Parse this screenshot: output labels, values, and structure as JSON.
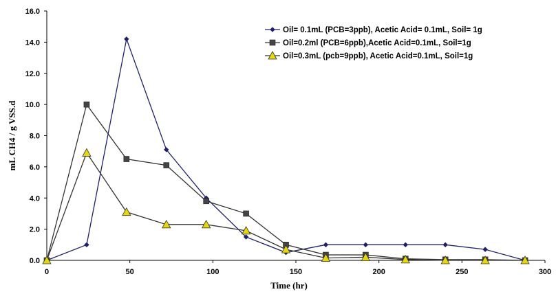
{
  "chart_data": {
    "type": "line",
    "xlabel": "Time (hr)",
    "ylabel": "mL CH4 / g VSS.d",
    "xlim": [
      0,
      300
    ],
    "ylim": [
      0,
      16
    ],
    "x_ticks": [
      "0",
      "50",
      "100",
      "150",
      "200",
      "250",
      "300"
    ],
    "y_ticks": [
      "0.0",
      "2.0",
      "4.0",
      "6.0",
      "8.0",
      "10.0",
      "12.0",
      "14.0",
      "16.0"
    ],
    "grid": false,
    "legend_position": "top-right",
    "series": [
      {
        "name": "Oil= 0.1mL (PCB=3ppb),  Acetic Acid= 0.1mL, Soil= 1g",
        "marker": "diamond",
        "color": "#1f1f6e",
        "marker_color": "#1f1f6e",
        "x": [
          0,
          24,
          48,
          72,
          96,
          120,
          144,
          168,
          192,
          216,
          240,
          264,
          288
        ],
        "y": [
          0,
          1.0,
          14.2,
          7.1,
          4.0,
          1.5,
          0.5,
          1.0,
          1.0,
          1.0,
          1.0,
          0.7,
          0
        ]
      },
      {
        "name": "Oil=0.2ml (PCB=6ppb),Acetic Acid=0.1mL, Soil=1g",
        "marker": "square",
        "color": "#333333",
        "marker_color": "#444444",
        "x": [
          0,
          24,
          48,
          72,
          96,
          120,
          144,
          168,
          192,
          216,
          240,
          264,
          288
        ],
        "y": [
          0,
          10.0,
          6.5,
          6.1,
          3.8,
          3.0,
          1.0,
          0.35,
          0.35,
          0.1,
          0.05,
          0.05,
          0
        ]
      },
      {
        "name": "Oil=0.3mL (pcb=9ppb), Acetic Acid=0.1mL, Soil=1g",
        "marker": "triangle",
        "color": "#333333",
        "marker_color": "#e6d800",
        "x": [
          0,
          24,
          48,
          72,
          96,
          120,
          144,
          168,
          192,
          216,
          240,
          264,
          288
        ],
        "y": [
          0,
          6.9,
          3.1,
          2.3,
          2.3,
          1.9,
          0.7,
          0.15,
          0.2,
          0.05,
          0.0,
          0.0,
          0
        ]
      }
    ]
  }
}
